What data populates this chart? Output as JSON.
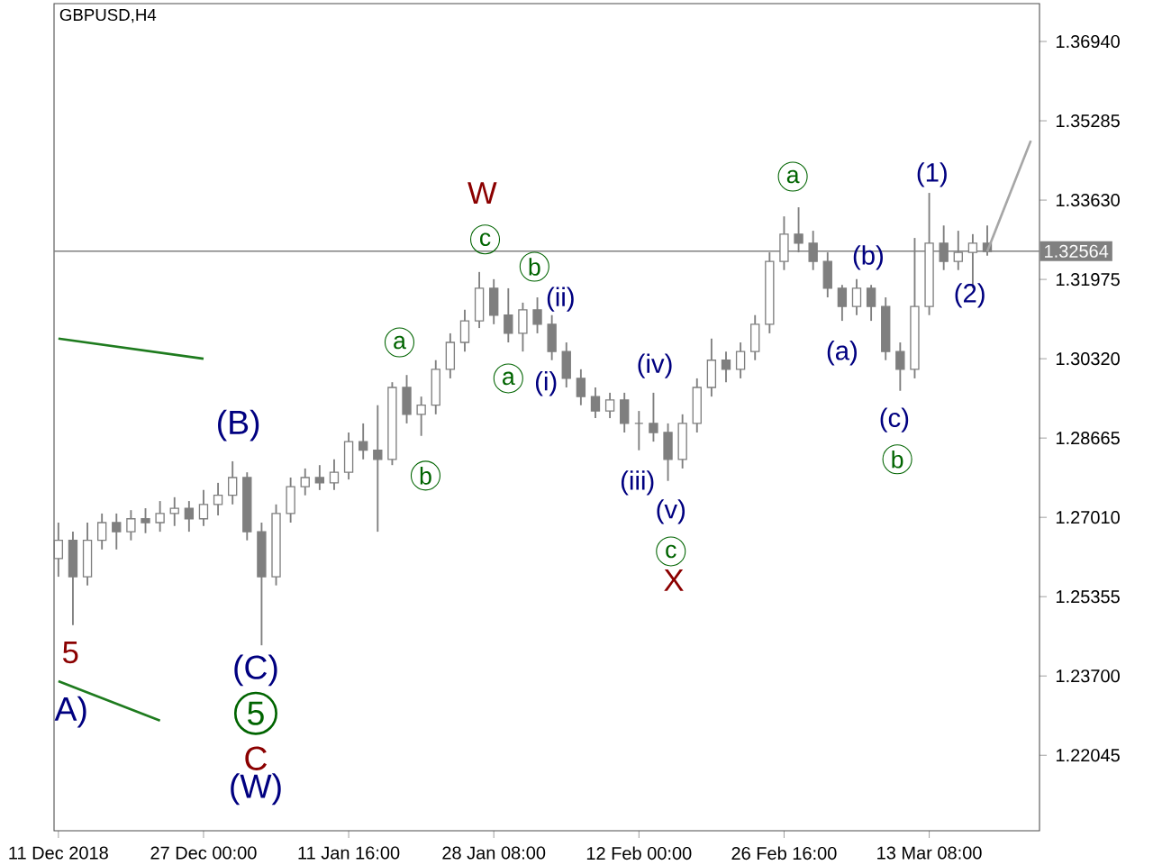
{
  "chart_data": {
    "type": "candlestick",
    "title": "GBPUSD,H4",
    "categories": [
      "11 Dec 2018",
      null,
      null,
      null,
      null,
      null,
      null,
      null,
      null,
      null,
      "27 Dec 00:00",
      null,
      null,
      null,
      null,
      null,
      null,
      null,
      null,
      null,
      "11 Jan 16:00",
      null,
      null,
      null,
      null,
      null,
      null,
      null,
      null,
      null,
      "28 Jan 08:00",
      null,
      null,
      null,
      null,
      null,
      null,
      null,
      null,
      null,
      "12 Feb 00:00",
      null,
      null,
      null,
      null,
      null,
      null,
      null,
      null,
      null,
      "26 Feb 16:00",
      null,
      null,
      null,
      null,
      null,
      null,
      null,
      null,
      null,
      "13 Mar 08:00",
      null,
      null,
      null,
      null,
      null,
      null,
      null
    ],
    "color": "#7f7f7f",
    "ohlc": [
      [
        1.2615,
        1.269,
        1.2577,
        1.2653
      ],
      [
        1.2653,
        1.2671,
        1.2476,
        1.2577
      ],
      [
        1.2577,
        1.269,
        1.2559,
        1.2653
      ],
      [
        1.2653,
        1.2709,
        1.2634,
        1.269
      ],
      [
        1.269,
        1.2709,
        1.2634,
        1.2671
      ],
      [
        1.2671,
        1.2716,
        1.2653,
        1.2698
      ],
      [
        1.2698,
        1.272,
        1.2668,
        1.269
      ],
      [
        1.269,
        1.2735,
        1.2671,
        1.2709
      ],
      [
        1.2709,
        1.2743,
        1.2683,
        1.272
      ],
      [
        1.272,
        1.2735,
        1.2671,
        1.2698
      ],
      [
        1.2698,
        1.2758,
        1.2683,
        1.2728
      ],
      [
        1.2728,
        1.2773,
        1.2705,
        1.2747
      ],
      [
        1.2747,
        1.2818,
        1.2728,
        1.2784
      ],
      [
        1.2784,
        1.2795,
        1.2653,
        1.2671
      ],
      [
        1.2671,
        1.269,
        1.2434,
        1.2577
      ],
      [
        1.2577,
        1.2728,
        1.2559,
        1.2709
      ],
      [
        1.2709,
        1.2784,
        1.269,
        1.2765
      ],
      [
        1.2765,
        1.2803,
        1.2747,
        1.2784
      ],
      [
        1.2784,
        1.281,
        1.2758,
        1.2773
      ],
      [
        1.2773,
        1.2822,
        1.2758,
        1.2795
      ],
      [
        1.2795,
        1.2878,
        1.278,
        1.2859
      ],
      [
        1.2859,
        1.2897,
        1.2822,
        1.2841
      ],
      [
        1.2841,
        1.2935,
        1.2671,
        1.2822
      ],
      [
        1.2822,
        1.2983,
        1.281,
        1.2972
      ],
      [
        1.2972,
        1.2998,
        1.2897,
        1.2916
      ],
      [
        1.2916,
        1.2953,
        1.2871,
        1.2935
      ],
      [
        1.2935,
        1.3029,
        1.2916,
        1.301
      ],
      [
        1.301,
        1.3085,
        1.2991,
        1.3066
      ],
      [
        1.3066,
        1.3134,
        1.3047,
        1.3111
      ],
      [
        1.3111,
        1.3213,
        1.3096,
        1.3179
      ],
      [
        1.3179,
        1.3198,
        1.3104,
        1.3123
      ],
      [
        1.3123,
        1.3179,
        1.3066,
        1.3085
      ],
      [
        1.3085,
        1.3149,
        1.3047,
        1.3134
      ],
      [
        1.3134,
        1.316,
        1.3085,
        1.3104
      ],
      [
        1.3104,
        1.3123,
        1.3029,
        1.3047
      ],
      [
        1.3047,
        1.3066,
        1.2972,
        1.2991
      ],
      [
        1.2991,
        1.301,
        1.2935,
        1.2953
      ],
      [
        1.2953,
        1.2972,
        1.2908,
        1.2923
      ],
      [
        1.2923,
        1.2961,
        1.2908,
        1.2946
      ],
      [
        1.2946,
        1.2961,
        1.2878,
        1.2897
      ],
      [
        1.2897,
        1.2923,
        1.2841,
        1.2897
      ],
      [
        1.2897,
        1.2961,
        1.2859,
        1.2878
      ],
      [
        1.2878,
        1.2897,
        1.2777,
        1.2822
      ],
      [
        1.2822,
        1.2916,
        1.2803,
        1.2897
      ],
      [
        1.2897,
        1.2991,
        1.2878,
        1.2972
      ],
      [
        1.2972,
        1.3074,
        1.2953,
        1.3029
      ],
      [
        1.3029,
        1.3047,
        1.2983,
        1.301
      ],
      [
        1.301,
        1.3066,
        1.2991,
        1.3047
      ],
      [
        1.3047,
        1.3123,
        1.3029,
        1.3104
      ],
      [
        1.3104,
        1.3254,
        1.3085,
        1.3235
      ],
      [
        1.3235,
        1.3329,
        1.3217,
        1.3292
      ],
      [
        1.3292,
        1.3348,
        1.3254,
        1.3273
      ],
      [
        1.3273,
        1.3299,
        1.3217,
        1.3235
      ],
      [
        1.3235,
        1.3254,
        1.316,
        1.3179
      ],
      [
        1.3179,
        1.3186,
        1.3111,
        1.3141
      ],
      [
        1.3141,
        1.3198,
        1.3123,
        1.3179
      ],
      [
        1.3179,
        1.3186,
        1.3111,
        1.3141
      ],
      [
        1.3141,
        1.316,
        1.3029,
        1.3047
      ],
      [
        1.3047,
        1.3066,
        1.2965,
        1.301
      ],
      [
        1.301,
        1.3284,
        1.2991,
        1.3141
      ],
      [
        1.3141,
        1.3378,
        1.3123,
        1.3273
      ],
      [
        1.3273,
        1.331,
        1.3217,
        1.3235
      ],
      [
        1.3235,
        1.3299,
        1.3217,
        1.3254
      ],
      [
        1.3254,
        1.3292,
        1.3179,
        1.3273
      ],
      [
        1.3273,
        1.331,
        1.3247,
        1.3256
      ],
      null,
      null,
      null
    ],
    "series": [
      {
        "type": "line",
        "color": "#1e7b1e",
        "values": [
          1.3074,
          null,
          null,
          null,
          null,
          null,
          null,
          null,
          null,
          null,
          1.3032,
          null,
          null,
          null,
          null,
          null,
          null,
          null,
          null,
          null,
          null,
          null,
          null,
          null,
          null,
          null,
          null,
          null,
          null,
          null,
          null,
          null,
          null,
          null,
          null,
          null,
          null,
          null,
          null,
          null,
          null,
          null,
          null,
          null,
          null,
          null,
          null,
          null,
          null,
          null,
          null,
          null,
          null,
          null,
          null,
          null,
          null,
          null,
          null,
          null,
          null,
          null,
          null,
          null,
          null,
          null,
          null,
          null
        ]
      },
      {
        "type": "line",
        "color": "#1e7b1e",
        "values": [
          1.2359,
          null,
          null,
          null,
          null,
          null,
          null,
          1.2277,
          null,
          null,
          null,
          null,
          null,
          null,
          null,
          null,
          null,
          null,
          null,
          null,
          null,
          null,
          null,
          null,
          null,
          null,
          null,
          null,
          null,
          null,
          null,
          null,
          null,
          null,
          null,
          null,
          null,
          null,
          null,
          null,
          null,
          null,
          null,
          null,
          null,
          null,
          null,
          null,
          null,
          null,
          null,
          null,
          null,
          null,
          null,
          null,
          null,
          null,
          null,
          null,
          null,
          null,
          null,
          null,
          null,
          null,
          null,
          null
        ]
      },
      {
        "type": "line",
        "color": "#a6a6a6",
        "values": [
          null,
          null,
          null,
          null,
          null,
          null,
          null,
          null,
          null,
          null,
          null,
          null,
          null,
          null,
          null,
          null,
          null,
          null,
          null,
          null,
          null,
          null,
          null,
          null,
          null,
          null,
          null,
          null,
          null,
          null,
          null,
          null,
          null,
          null,
          null,
          null,
          null,
          null,
          null,
          null,
          null,
          null,
          null,
          null,
          null,
          null,
          null,
          null,
          null,
          null,
          null,
          null,
          null,
          null,
          null,
          null,
          null,
          null,
          null,
          null,
          null,
          null,
          null,
          null,
          1.3256,
          null,
          null,
          1.3487
        ]
      }
    ],
    "ylim": [
      1.2047,
      1.3773
    ],
    "yticks": [
      {
        "value": 1.22045,
        "label": "1.22045"
      },
      {
        "value": 1.237,
        "label": "1.23700"
      },
      {
        "value": 1.25355,
        "label": "1.25355"
      },
      {
        "value": 1.2701,
        "label": "1.27010"
      },
      {
        "value": 1.28665,
        "label": "1.28665"
      },
      {
        "value": 1.3032,
        "label": "1.30320"
      },
      {
        "value": 1.31975,
        "label": "1.31975"
      },
      {
        "value": 1.3363,
        "label": "1.33630"
      },
      {
        "value": 1.35285,
        "label": "1.35285"
      },
      {
        "value": 1.3694,
        "label": "1.36940"
      }
    ],
    "ref_lines": [
      {
        "axis": "y",
        "value": 1.32564,
        "label": "1.32564",
        "color": "#808080"
      }
    ],
    "annotations": [
      "W",
      "c",
      "b",
      "(ii)",
      "a",
      "a",
      "(i)",
      "(B)",
      "b",
      "(iv)",
      "(iii)",
      "(v)",
      "c",
      "X",
      "a",
      "(b)",
      "(a)",
      "(c)",
      "b",
      "(1)",
      "(2)",
      "5",
      "A)",
      "(C)",
      "5",
      "C",
      "(W)"
    ]
  }
}
